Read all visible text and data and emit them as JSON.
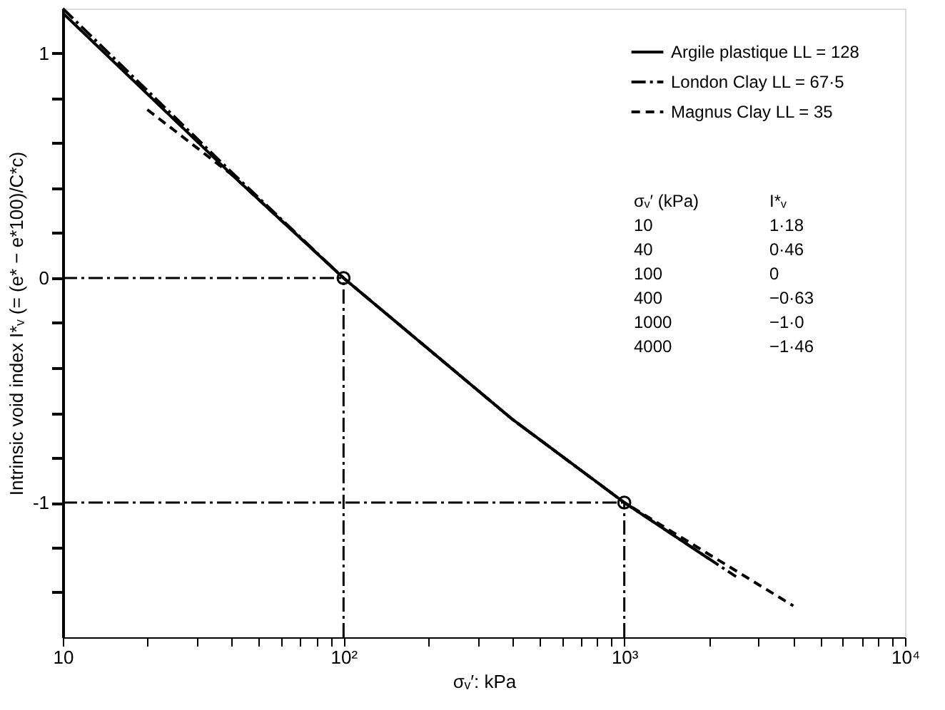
{
  "chart_data": {
    "type": "line",
    "xlabel": "σᵥ′: kPa",
    "ylabel": "Intrinsic void index I*ᵥ (= (e* − e*100)/C*c)",
    "log": "x",
    "xlim": [
      10,
      10000
    ],
    "xticks": [
      {
        "value": 10,
        "label": "10"
      },
      {
        "value": 20,
        "label": null
      },
      {
        "value": 30,
        "label": null
      },
      {
        "value": 40,
        "label": null
      },
      {
        "value": 50,
        "label": null
      },
      {
        "value": 60,
        "label": null
      },
      {
        "value": 70,
        "label": null
      },
      {
        "value": 80,
        "label": null
      },
      {
        "value": 90,
        "label": null
      },
      {
        "value": 100,
        "label": "10²"
      },
      {
        "value": 200,
        "label": null
      },
      {
        "value": 300,
        "label": null
      },
      {
        "value": 400,
        "label": null
      },
      {
        "value": 500,
        "label": null
      },
      {
        "value": 600,
        "label": null
      },
      {
        "value": 700,
        "label": null
      },
      {
        "value": 800,
        "label": null
      },
      {
        "value": 900,
        "label": null
      },
      {
        "value": 1000,
        "label": "10³"
      },
      {
        "value": 2000,
        "label": null
      },
      {
        "value": 3000,
        "label": null
      },
      {
        "value": 4000,
        "label": null
      },
      {
        "value": 5000,
        "label": null
      },
      {
        "value": 6000,
        "label": null
      },
      {
        "value": 7000,
        "label": null
      },
      {
        "value": 8000,
        "label": null
      },
      {
        "value": 9000,
        "label": null
      },
      {
        "value": 10000,
        "label": "10⁴"
      }
    ],
    "ylim": [
      -1.6,
      1.2
    ],
    "yticks": [
      {
        "value": -1.4,
        "label": null
      },
      {
        "value": -1.2,
        "label": null
      },
      {
        "value": -1,
        "label": "-1"
      },
      {
        "value": -0.8,
        "label": null
      },
      {
        "value": -0.6,
        "label": null
      },
      {
        "value": -0.4,
        "label": null
      },
      {
        "value": -0.2,
        "label": null
      },
      {
        "value": 0,
        "label": "0"
      },
      {
        "value": 0.2,
        "label": null
      },
      {
        "value": 0.4,
        "label": null
      },
      {
        "value": 0.6,
        "label": null
      },
      {
        "value": 0.8,
        "label": null
      },
      {
        "value": 1,
        "label": "1"
      }
    ],
    "grid": false,
    "legend": "top right",
    "series": [
      {
        "name": "Argile plastique   LL = 128",
        "color": "#000000",
        "line_style": "solid",
        "x": [
          10,
          40,
          100,
          400,
          1000,
          2000
        ],
        "values": [
          1.18,
          0.46,
          0,
          -0.63,
          -1.0,
          -1.25
        ]
      },
      {
        "name": "London Clay        LL = 67·5",
        "color": "#000000",
        "line_style": "dashdot",
        "x": [
          10,
          40,
          100,
          400,
          1000,
          2500
        ],
        "values": [
          1.2,
          0.47,
          0,
          -0.63,
          -1.0,
          -1.33
        ]
      },
      {
        "name": "Magnus Clay        LL = 35",
        "color": "#000000",
        "line_style": "dashed",
        "x": [
          20,
          40,
          100,
          400,
          1000,
          4000
        ],
        "values": [
          0.75,
          0.46,
          0,
          -0.63,
          -1.0,
          -1.46
        ]
      },
      {
        "type": "scatter",
        "marker": "circle",
        "color": "#000000",
        "x": [
          100,
          1000
        ],
        "values": [
          0,
          -1.0
        ]
      }
    ],
    "ref_lines": [
      {
        "axis": "y",
        "value": 0,
        "line_style": "dashdot"
      },
      {
        "axis": "x",
        "value": 100,
        "line_style": "dashdot"
      },
      {
        "axis": "y",
        "value": -1,
        "line_style": "dashdot"
      },
      {
        "axis": "x",
        "value": 1000,
        "line_style": "dashdot"
      }
    ],
    "annotations": [
      "σᵥ′ (kPa)",
      "I*ᵥ",
      "10",
      "1·18",
      "40",
      "0·46",
      "100",
      "0",
      "400",
      "−0·63",
      "1000",
      "−1·0",
      "4000",
      "−1·46"
    ]
  }
}
